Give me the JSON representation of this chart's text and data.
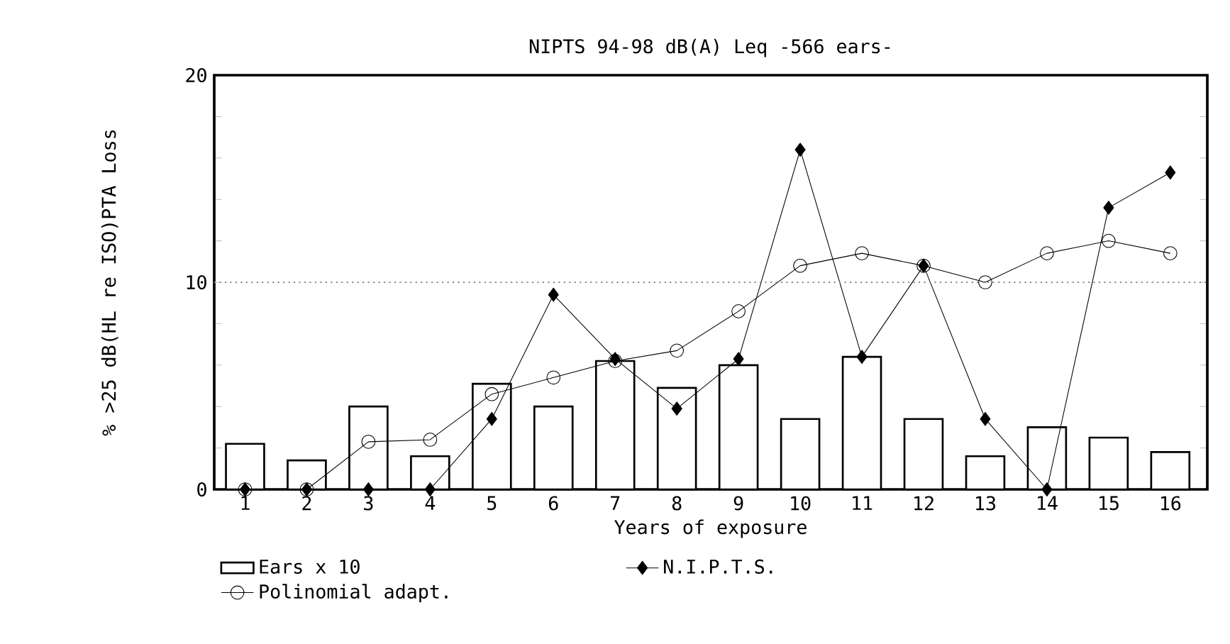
{
  "chart_data": {
    "type": "bar",
    "title": "NIPTS 94-98 dB(A) Leq -566 ears-",
    "xlabel": "Years of exposure",
    "ylabel": "% >25 dB(HL re ISO)PTA Loss",
    "categories": [
      "1",
      "2",
      "3",
      "4",
      "5",
      "6",
      "7",
      "8",
      "9",
      "10",
      "11",
      "12",
      "13",
      "14",
      "15",
      "16"
    ],
    "series": [
      {
        "name": "Ears x 10",
        "color": "#ffffff",
        "values": [
          2.2,
          1.4,
          4.0,
          1.6,
          5.1,
          4.0,
          6.2,
          4.9,
          6.0,
          3.4,
          6.4,
          3.4,
          1.6,
          3.0,
          2.5,
          1.8
        ]
      },
      {
        "name": "N.I.P.T.S.",
        "type": "line",
        "color": "#000000",
        "marker": "diamond",
        "values": [
          0,
          0,
          0,
          0,
          3.4,
          9.4,
          6.3,
          3.9,
          6.3,
          16.4,
          6.4,
          10.8,
          3.4,
          0,
          13.6,
          15.3
        ]
      },
      {
        "name": "Polinomial adapt.",
        "type": "line",
        "color": "#000000",
        "marker": "circle",
        "values": [
          0,
          0,
          2.3,
          2.4,
          4.6,
          5.4,
          6.2,
          6.7,
          8.6,
          10.8,
          11.4,
          10.8,
          10.0,
          11.4,
          12.0,
          11.4
        ]
      }
    ],
    "ylim": [
      0,
      20
    ],
    "yticks": [
      0,
      {
        "value": 2,
        "label": null
      },
      {
        "value": 4,
        "label": null
      },
      {
        "value": 6,
        "label": null
      },
      {
        "value": 8,
        "label": null
      },
      10,
      {
        "value": 12,
        "label": null
      },
      {
        "value": 14,
        "label": null
      },
      {
        "value": 16,
        "label": null
      },
      {
        "value": 18,
        "label": null
      },
      20
    ],
    "ref_lines": [
      {
        "axis": "y",
        "value": 10,
        "line_style": "dotted",
        "color": "#888888"
      }
    ],
    "legend": "bottom left"
  }
}
